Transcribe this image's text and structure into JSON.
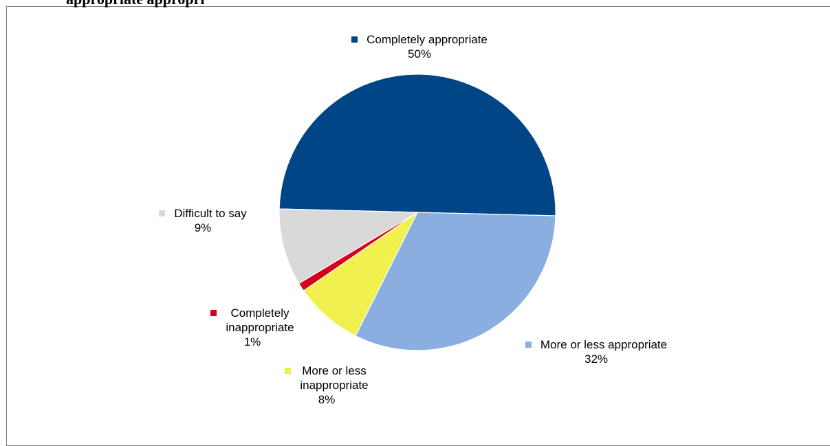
{
  "header": {
    "title_fragment": "appropriate    appropri"
  },
  "chart_data": {
    "type": "pie",
    "slices": [
      {
        "label": "Completely appropriate",
        "value": 50,
        "value_label": "50%",
        "color": "#004586"
      },
      {
        "label": "More or less appropriate",
        "value": 32,
        "value_label": "32%",
        "color": "#8aaee0"
      },
      {
        "label": "More or less\ninappropriate",
        "value": 8,
        "value_label": "8%",
        "color": "#f0f04e"
      },
      {
        "label": "Completely\ninappropriate",
        "value": 1,
        "value_label": "1%",
        "color": "#d6001c"
      },
      {
        "label": "Difficult to say",
        "value": 9,
        "value_label": "9%",
        "color": "#d9d9d9"
      }
    ]
  }
}
